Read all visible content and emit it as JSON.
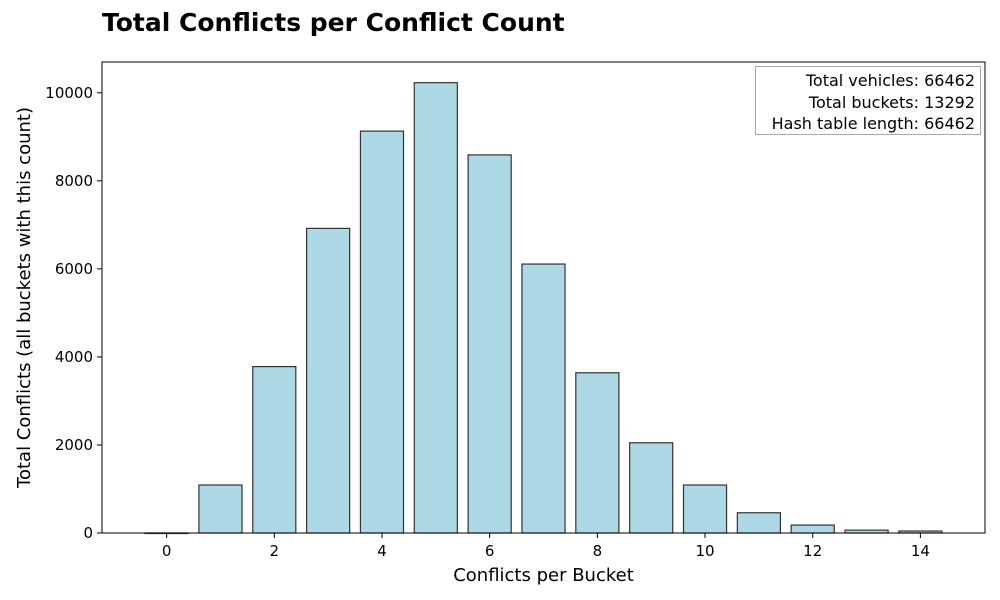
{
  "chart_data": {
    "type": "bar",
    "title": "Total Conflicts per Conflict Count",
    "xlabel": "Conflicts per Bucket",
    "ylabel": "Total Conflicts (all buckets with this count)",
    "categories": [
      0,
      1,
      2,
      3,
      4,
      5,
      6,
      7,
      8,
      9,
      10,
      11,
      12,
      13,
      14
    ],
    "values": [
      0,
      1090,
      3780,
      6920,
      9130,
      10230,
      8590,
      6110,
      3640,
      2050,
      1090,
      460,
      180,
      65,
      45
    ],
    "xlim": [
      -1.2,
      15.2
    ],
    "ylim": [
      0,
      10700
    ],
    "xticks": [
      0,
      2,
      4,
      6,
      8,
      10,
      12,
      14
    ],
    "yticks": [
      0,
      2000,
      4000,
      6000,
      8000,
      10000
    ],
    "bar_color": "#add8e6",
    "edge_color": "#333333",
    "grid": false,
    "legend_position": "top-right",
    "annotations": [
      "Total vehicles: 66462",
      "Total buckets: 13292",
      "Hash table length: 66462"
    ]
  }
}
